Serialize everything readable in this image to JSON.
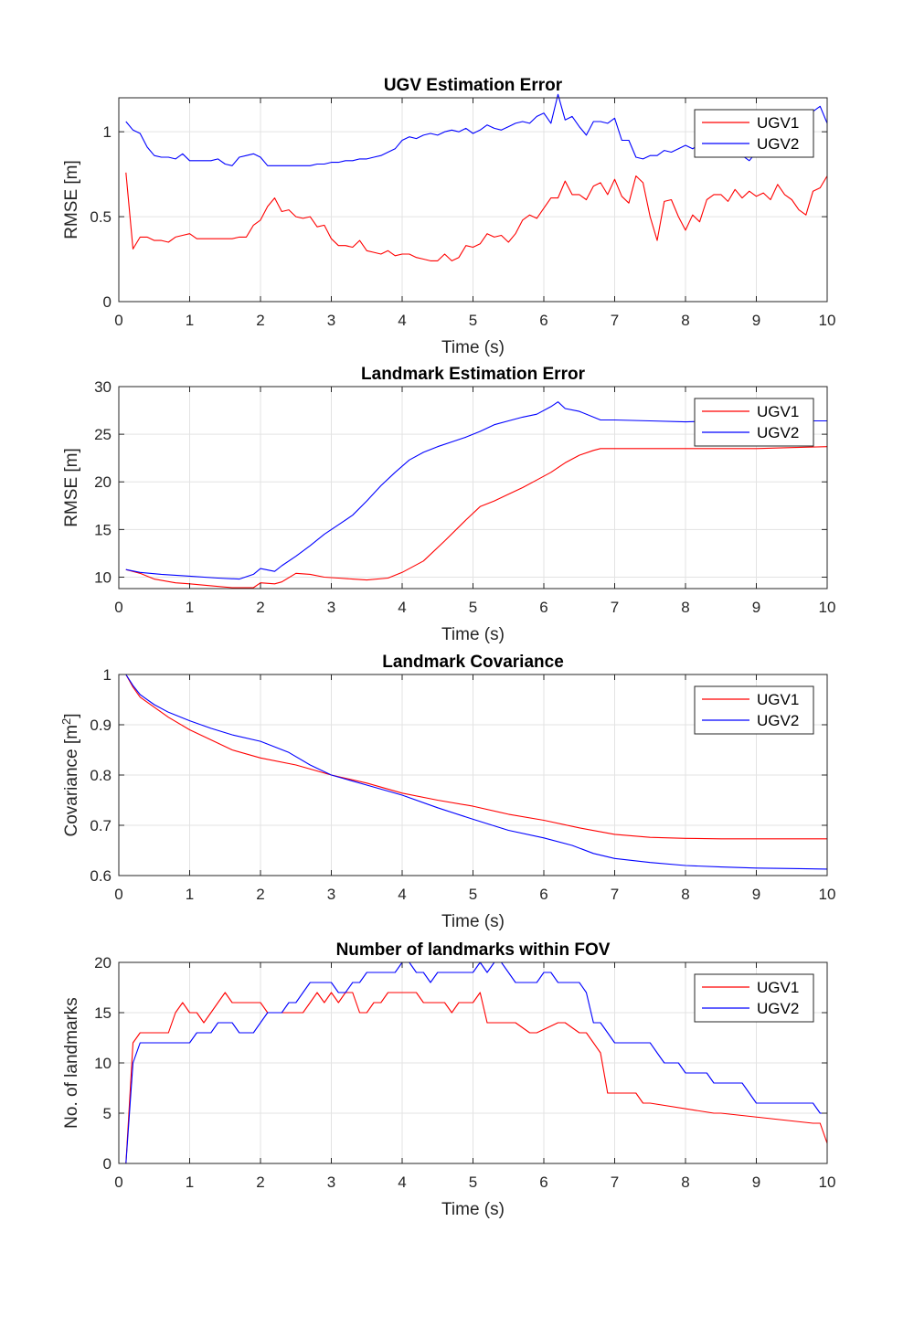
{
  "chart_data": [
    {
      "type": "line",
      "title": "UGV Estimation Error",
      "xlabel": "Time (s)",
      "ylabel": "RMSE [m]",
      "xlim": [
        0,
        10
      ],
      "ylim": [
        0,
        1.2
      ],
      "xticks": [
        0,
        1,
        2,
        3,
        4,
        5,
        6,
        7,
        8,
        9,
        10
      ],
      "yticks": [
        0,
        0.5,
        1
      ],
      "yticklabels": [
        "0",
        "0.5",
        "1"
      ],
      "grid": true,
      "legend_position": "top-right",
      "series": [
        {
          "name": "UGV1",
          "color": "#ff0000",
          "x": [
            0.1,
            0.2,
            0.3,
            0.4,
            0.5,
            0.6,
            0.7,
            0.8,
            0.9,
            1.0,
            1.1,
            1.2,
            1.3,
            1.4,
            1.5,
            1.6,
            1.7,
            1.8,
            1.9,
            2.0,
            2.1,
            2.2,
            2.3,
            2.4,
            2.5,
            2.6,
            2.7,
            2.8,
            2.9,
            3.0,
            3.1,
            3.2,
            3.3,
            3.4,
            3.5,
            3.6,
            3.7,
            3.8,
            3.9,
            4.0,
            4.1,
            4.2,
            4.3,
            4.4,
            4.5,
            4.6,
            4.7,
            4.8,
            4.9,
            5.0,
            5.1,
            5.2,
            5.3,
            5.4,
            5.5,
            5.6,
            5.7,
            5.8,
            5.9,
            6.0,
            6.1,
            6.2,
            6.3,
            6.4,
            6.5,
            6.6,
            6.7,
            6.8,
            6.9,
            7.0,
            7.1,
            7.2,
            7.3,
            7.4,
            7.5,
            7.6,
            7.7,
            7.8,
            7.9,
            8.0,
            8.1,
            8.2,
            8.3,
            8.4,
            8.5,
            8.6,
            8.7,
            8.8,
            8.9,
            9.0,
            9.1,
            9.2,
            9.3,
            9.4,
            9.5,
            9.6,
            9.7,
            9.8,
            9.9,
            10.0
          ],
          "y": [
            0.76,
            0.31,
            0.38,
            0.38,
            0.36,
            0.36,
            0.35,
            0.38,
            0.39,
            0.4,
            0.37,
            0.37,
            0.37,
            0.37,
            0.37,
            0.37,
            0.38,
            0.38,
            0.45,
            0.48,
            0.56,
            0.61,
            0.53,
            0.54,
            0.5,
            0.49,
            0.5,
            0.44,
            0.45,
            0.37,
            0.33,
            0.33,
            0.32,
            0.36,
            0.3,
            0.29,
            0.28,
            0.3,
            0.27,
            0.28,
            0.28,
            0.26,
            0.25,
            0.24,
            0.24,
            0.28,
            0.24,
            0.26,
            0.33,
            0.32,
            0.34,
            0.4,
            0.38,
            0.39,
            0.35,
            0.4,
            0.48,
            0.51,
            0.49,
            0.55,
            0.61,
            0.61,
            0.71,
            0.63,
            0.63,
            0.6,
            0.68,
            0.7,
            0.63,
            0.72,
            0.62,
            0.58,
            0.74,
            0.7,
            0.5,
            0.36,
            0.59,
            0.6,
            0.5,
            0.42,
            0.51,
            0.47,
            0.6,
            0.63,
            0.63,
            0.59,
            0.66,
            0.61,
            0.65,
            0.62,
            0.64,
            0.6,
            0.69,
            0.63,
            0.6,
            0.54,
            0.51,
            0.65,
            0.67,
            0.74
          ]
        },
        {
          "name": "UGV2",
          "color": "#0000ff",
          "x": [
            0.1,
            0.2,
            0.3,
            0.4,
            0.5,
            0.6,
            0.7,
            0.8,
            0.9,
            1.0,
            1.1,
            1.2,
            1.3,
            1.4,
            1.5,
            1.6,
            1.7,
            1.8,
            1.9,
            2.0,
            2.1,
            2.2,
            2.3,
            2.4,
            2.5,
            2.6,
            2.7,
            2.8,
            2.9,
            3.0,
            3.1,
            3.2,
            3.3,
            3.4,
            3.5,
            3.6,
            3.7,
            3.8,
            3.9,
            4.0,
            4.1,
            4.2,
            4.3,
            4.4,
            4.5,
            4.6,
            4.7,
            4.8,
            4.9,
            5.0,
            5.1,
            5.2,
            5.3,
            5.4,
            5.5,
            5.6,
            5.7,
            5.8,
            5.9,
            6.0,
            6.1,
            6.2,
            6.3,
            6.4,
            6.5,
            6.6,
            6.7,
            6.8,
            6.9,
            7.0,
            7.1,
            7.2,
            7.3,
            7.4,
            7.5,
            7.6,
            7.7,
            7.8,
            7.9,
            8.0,
            8.1,
            8.2,
            8.3,
            8.4,
            8.5,
            8.6,
            8.7,
            8.8,
            8.9,
            9.0,
            9.1,
            9.2,
            9.3,
            9.4,
            9.5,
            9.6,
            9.7,
            9.8,
            9.9,
            10.0
          ],
          "y": [
            1.06,
            1.01,
            0.99,
            0.91,
            0.86,
            0.85,
            0.85,
            0.84,
            0.87,
            0.83,
            0.83,
            0.83,
            0.83,
            0.84,
            0.81,
            0.8,
            0.85,
            0.86,
            0.87,
            0.85,
            0.8,
            0.8,
            0.8,
            0.8,
            0.8,
            0.8,
            0.8,
            0.81,
            0.81,
            0.82,
            0.82,
            0.83,
            0.83,
            0.84,
            0.84,
            0.85,
            0.86,
            0.88,
            0.9,
            0.95,
            0.97,
            0.96,
            0.98,
            0.99,
            0.98,
            1.0,
            1.01,
            1.0,
            1.02,
            0.99,
            1.01,
            1.04,
            1.02,
            1.01,
            1.03,
            1.05,
            1.06,
            1.05,
            1.09,
            1.11,
            1.05,
            1.22,
            1.07,
            1.09,
            1.03,
            0.98,
            1.06,
            1.06,
            1.05,
            1.08,
            0.95,
            0.95,
            0.85,
            0.84,
            0.86,
            0.86,
            0.89,
            0.88,
            0.9,
            0.92,
            0.9,
            0.93,
            0.94,
            0.95,
            0.94,
            0.92,
            0.93,
            0.86,
            0.83,
            0.88,
            0.88,
            0.88,
            0.88,
            0.88,
            0.87,
            0.86,
            1.1,
            1.12,
            1.15,
            1.05
          ]
        }
      ]
    },
    {
      "type": "line",
      "title": "Landmark Estimation Error",
      "xlabel": "Time (s)",
      "ylabel": "RMSE [m]",
      "xlim": [
        0,
        10
      ],
      "ylim": [
        8.8,
        30
      ],
      "xticks": [
        0,
        1,
        2,
        3,
        4,
        5,
        6,
        7,
        8,
        9,
        10
      ],
      "yticks": [
        10,
        15,
        20,
        25,
        30
      ],
      "yticklabels": [
        "10",
        "15",
        "20",
        "25",
        "30"
      ],
      "grid": true,
      "legend_position": "top-right",
      "series": [
        {
          "name": "UGV1",
          "color": "#ff0000",
          "x": [
            0.1,
            0.3,
            0.5,
            0.8,
            1.0,
            1.3,
            1.6,
            1.9,
            2.0,
            2.2,
            2.3,
            2.5,
            2.7,
            2.9,
            3.1,
            3.3,
            3.5,
            3.8,
            4.0,
            4.3,
            4.6,
            4.9,
            5.1,
            5.3,
            5.5,
            5.7,
            5.9,
            6.1,
            6.3,
            6.5,
            6.7,
            6.8,
            7.0,
            7.5,
            8.0,
            8.5,
            9.0,
            9.5,
            10.0
          ],
          "y": [
            10.8,
            10.4,
            9.8,
            9.4,
            9.3,
            9.1,
            8.9,
            8.9,
            9.4,
            9.3,
            9.5,
            10.4,
            10.3,
            10.0,
            9.9,
            9.8,
            9.7,
            9.9,
            10.5,
            11.7,
            13.8,
            16.0,
            17.4,
            18.0,
            18.7,
            19.4,
            20.2,
            21.0,
            22.0,
            22.8,
            23.3,
            23.5,
            23.5,
            23.5,
            23.5,
            23.5,
            23.5,
            23.6,
            23.7
          ]
        },
        {
          "name": "UGV2",
          "color": "#0000ff",
          "x": [
            0.1,
            0.3,
            0.6,
            1.0,
            1.4,
            1.7,
            1.9,
            2.0,
            2.2,
            2.3,
            2.5,
            2.7,
            2.9,
            3.1,
            3.3,
            3.5,
            3.7,
            3.9,
            4.1,
            4.3,
            4.5,
            4.7,
            4.9,
            5.1,
            5.3,
            5.5,
            5.7,
            5.9,
            6.1,
            6.2,
            6.3,
            6.5,
            6.8,
            7.0,
            7.5,
            8.0,
            8.5,
            9.0,
            9.5,
            10.0
          ],
          "y": [
            10.8,
            10.5,
            10.3,
            10.1,
            9.9,
            9.8,
            10.3,
            10.9,
            10.6,
            11.2,
            12.2,
            13.3,
            14.5,
            15.5,
            16.5,
            18.0,
            19.6,
            21.0,
            22.3,
            23.1,
            23.7,
            24.2,
            24.7,
            25.3,
            26.0,
            26.4,
            26.8,
            27.1,
            27.9,
            28.4,
            27.7,
            27.4,
            26.5,
            26.5,
            26.4,
            26.3,
            26.4,
            26.4,
            26.4,
            26.4
          ]
        }
      ]
    },
    {
      "type": "line",
      "title": "Landmark Covariance",
      "xlabel": "Time (s)",
      "ylabel": "Covariance [m",
      "ylabel_sup": "2",
      "ylabel_suffix": "]",
      "xlim": [
        0,
        10
      ],
      "ylim": [
        0.6,
        1
      ],
      "xticks": [
        0,
        1,
        2,
        3,
        4,
        5,
        6,
        7,
        8,
        9,
        10
      ],
      "yticks": [
        0.6,
        0.7,
        0.8,
        0.9,
        1
      ],
      "yticklabels": [
        "0.6",
        "0.7",
        "0.8",
        "0.9",
        "1"
      ],
      "grid": true,
      "legend_position": "top-right",
      "series": [
        {
          "name": "UGV1",
          "color": "#ff0000",
          "x": [
            0.1,
            0.2,
            0.3,
            0.5,
            0.7,
            1.0,
            1.3,
            1.6,
            2.0,
            2.5,
            3.0,
            3.5,
            4.0,
            4.5,
            5.0,
            5.5,
            6.0,
            6.5,
            7.0,
            7.5,
            8.0,
            8.5,
            9.0,
            9.5,
            10.0
          ],
          "y": [
            1.0,
            0.975,
            0.955,
            0.935,
            0.915,
            0.89,
            0.87,
            0.85,
            0.834,
            0.82,
            0.8,
            0.784,
            0.764,
            0.75,
            0.738,
            0.722,
            0.71,
            0.695,
            0.682,
            0.676,
            0.674,
            0.673,
            0.673,
            0.673,
            0.673
          ]
        },
        {
          "name": "UGV2",
          "color": "#0000ff",
          "x": [
            0.1,
            0.2,
            0.3,
            0.5,
            0.7,
            1.0,
            1.3,
            1.6,
            2.0,
            2.4,
            2.7,
            3.0,
            3.5,
            4.0,
            4.5,
            5.0,
            5.5,
            6.0,
            6.4,
            6.7,
            7.0,
            7.5,
            8.0,
            8.5,
            9.0,
            9.5,
            10.0
          ],
          "y": [
            1.0,
            0.978,
            0.96,
            0.94,
            0.925,
            0.908,
            0.893,
            0.88,
            0.867,
            0.845,
            0.82,
            0.8,
            0.78,
            0.76,
            0.735,
            0.712,
            0.69,
            0.675,
            0.66,
            0.644,
            0.634,
            0.626,
            0.62,
            0.617,
            0.615,
            0.614,
            0.613
          ]
        }
      ]
    },
    {
      "type": "line",
      "title": "Number of landmarks within FOV",
      "xlabel": "Time (s)",
      "ylabel": "No. of landmarks",
      "xlim": [
        0,
        10
      ],
      "ylim": [
        0,
        20
      ],
      "xticks": [
        0,
        1,
        2,
        3,
        4,
        5,
        6,
        7,
        8,
        9,
        10
      ],
      "yticks": [
        0,
        5,
        10,
        15,
        20
      ],
      "yticklabels": [
        "0",
        "5",
        "10",
        "15",
        "20"
      ],
      "grid": true,
      "legend_position": "top-right",
      "series": [
        {
          "name": "UGV1",
          "color": "#ff0000",
          "x": [
            0.1,
            0.2,
            0.3,
            0.7,
            0.8,
            0.9,
            1.0,
            1.1,
            1.2,
            1.3,
            1.4,
            1.5,
            1.6,
            1.7,
            2.0,
            2.1,
            2.2,
            2.3,
            2.5,
            2.6,
            2.7,
            2.8,
            2.9,
            3.0,
            3.1,
            3.2,
            3.3,
            3.4,
            3.5,
            3.6,
            3.7,
            3.8,
            3.9,
            4.0,
            4.2,
            4.3,
            4.6,
            4.7,
            4.8,
            4.9,
            5.0,
            5.1,
            5.2,
            5.5,
            5.6,
            5.8,
            5.9,
            6.2,
            6.3,
            6.5,
            6.6,
            6.7,
            6.8,
            6.9,
            7.2,
            7.3,
            7.4,
            7.5,
            8.4,
            8.5,
            9.8,
            9.9,
            10.0
          ],
          "y": [
            0,
            12,
            13,
            13,
            15,
            16,
            15,
            15,
            14,
            15,
            16,
            17,
            16,
            16,
            16,
            15,
            15,
            15,
            15,
            15,
            16,
            17,
            16,
            17,
            16,
            17,
            17,
            15,
            15,
            16,
            16,
            17,
            17,
            17,
            17,
            16,
            16,
            15,
            16,
            16,
            16,
            17,
            14,
            14,
            14,
            13,
            13,
            14,
            14,
            13,
            13,
            12,
            11,
            7,
            7,
            7,
            6,
            6,
            5,
            5,
            4,
            4,
            2
          ]
        },
        {
          "name": "UGV2",
          "color": "#0000ff",
          "x": [
            0.1,
            0.2,
            0.3,
            1.0,
            1.1,
            1.2,
            1.3,
            1.4,
            1.6,
            1.7,
            1.8,
            1.9,
            2.0,
            2.1,
            2.2,
            2.3,
            2.4,
            2.5,
            2.6,
            2.7,
            2.8,
            2.9,
            3.0,
            3.1,
            3.2,
            3.3,
            3.4,
            3.5,
            3.6,
            3.9,
            4.0,
            4.1,
            4.2,
            4.3,
            4.4,
            4.5,
            4.6,
            4.7,
            5.0,
            5.1,
            5.2,
            5.3,
            5.4,
            5.5,
            5.6,
            5.7,
            5.8,
            5.9,
            6.0,
            6.1,
            6.2,
            6.3,
            6.4,
            6.5,
            6.6,
            6.7,
            6.8,
            6.9,
            7.0,
            7.1,
            7.5,
            7.6,
            7.7,
            7.9,
            8.0,
            8.1,
            8.2,
            8.3,
            8.4,
            8.5,
            8.6,
            8.8,
            8.9,
            9.0,
            9.1,
            9.8,
            9.9,
            10.0
          ],
          "y": [
            0,
            10,
            12,
            12,
            13,
            13,
            13,
            14,
            14,
            13,
            13,
            13,
            14,
            15,
            15,
            15,
            16,
            16,
            17,
            18,
            18,
            18,
            18,
            17,
            17,
            18,
            18,
            19,
            19,
            19,
            20,
            20,
            19,
            19,
            18,
            19,
            19,
            19,
            19,
            20,
            19,
            20,
            20,
            19,
            18,
            18,
            18,
            18,
            19,
            19,
            18,
            18,
            18,
            18,
            17,
            14,
            14,
            13,
            12,
            12,
            12,
            11,
            10,
            10,
            9,
            9,
            9,
            9,
            8,
            8,
            8,
            8,
            7,
            6,
            6,
            6,
            5,
            5
          ]
        }
      ]
    }
  ]
}
